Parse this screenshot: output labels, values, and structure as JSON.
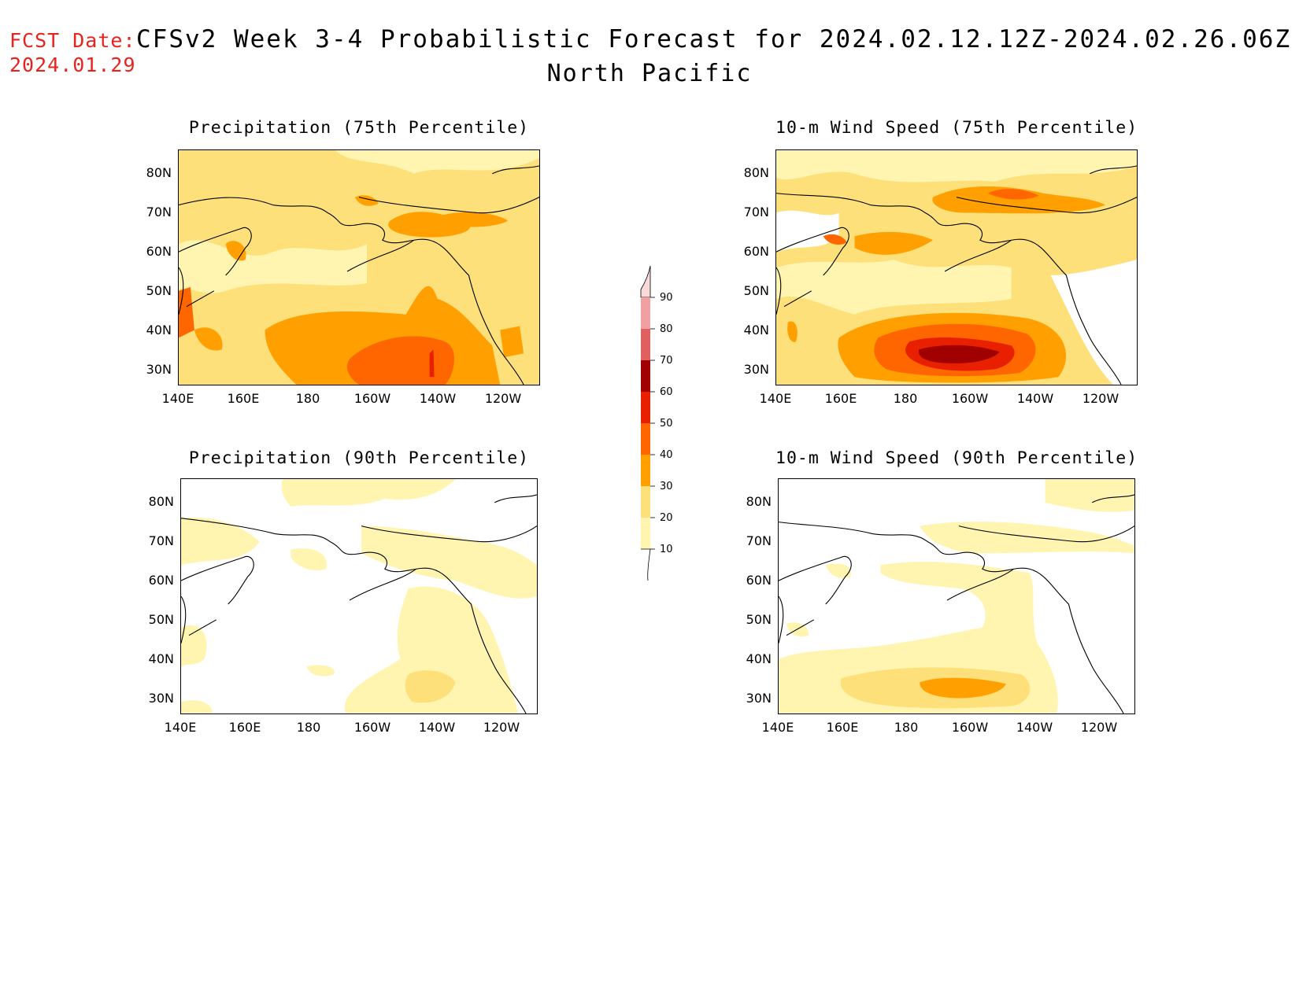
{
  "header": {
    "fcst_label": "FCST Date:",
    "fcst_date": "2024.01.29",
    "title": "CFSv2 Week 3-4 Probabilistic Forecast for 2024.02.12.12Z-2024.02.26.06Z",
    "region": "North Pacific"
  },
  "panels": {
    "p75": {
      "title": "Precipitation (75th Percentile)"
    },
    "w75": {
      "title": "10-m Wind Speed (75th Percentile)"
    },
    "p90": {
      "title": "Precipitation (90th Percentile)"
    },
    "w90": {
      "title": "10-m Wind Speed (90th Percentile)"
    }
  },
  "axes": {
    "lat_labels": [
      "80N",
      "70N",
      "60N",
      "50N",
      "40N",
      "30N"
    ],
    "lon_labels": [
      "140E",
      "160E",
      "180",
      "160W",
      "140W",
      "120W"
    ]
  },
  "colorbar": {
    "labels": [
      "90",
      "80",
      "70",
      "60",
      "50",
      "40",
      "30",
      "20",
      "10"
    ],
    "colors": [
      "#f8dada",
      "#f0a0a0",
      "#e06060",
      "#a00000",
      "#e82000",
      "#ff6600",
      "#ffa000",
      "#fde07a",
      "#fff5b0"
    ]
  }
}
